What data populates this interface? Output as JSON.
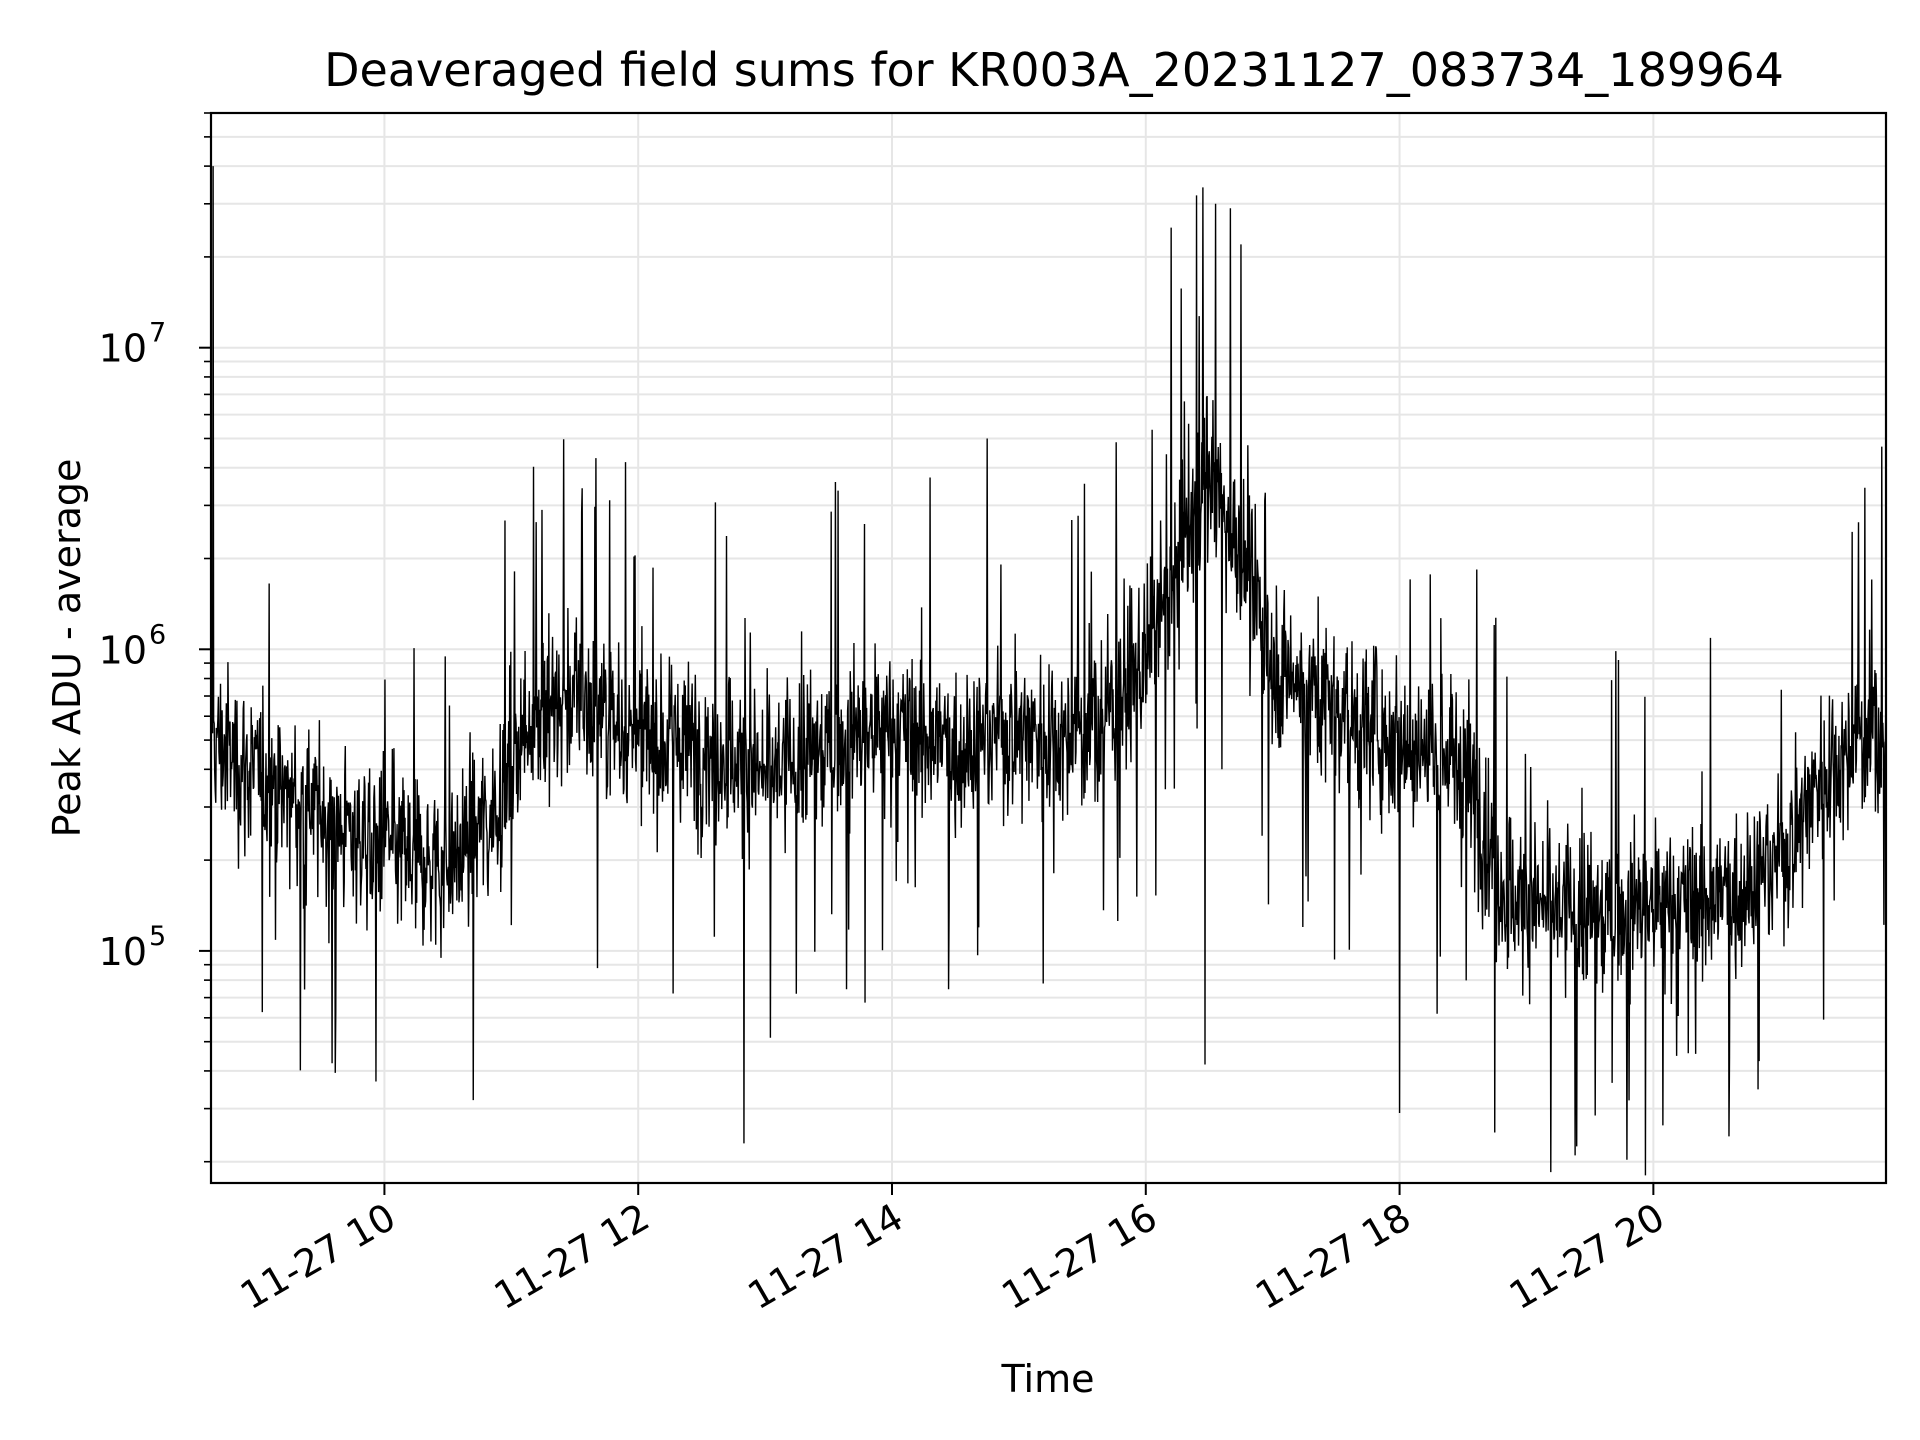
{
  "chart_data": {
    "type": "line",
    "title": "Deaveraged field sums for KR003A_20231127_083734_189964",
    "xlabel": "Time",
    "ylabel": "Peak ADU - average",
    "x_range": [
      "2023-11-27 08:38",
      "2023-11-27 21:50"
    ],
    "y_range": [
      17000,
      60000000
    ],
    "y_scale": "log",
    "grid": true,
    "line_color": "#000000",
    "grid_color": "#e6e6e6",
    "x_ticks": [
      {
        "value": "2023-11-27 10:00",
        "label": "11-27 10"
      },
      {
        "value": "2023-11-27 12:00",
        "label": "11-27 12"
      },
      {
        "value": "2023-11-27 14:00",
        "label": "11-27 14"
      },
      {
        "value": "2023-11-27 16:00",
        "label": "11-27 16"
      },
      {
        "value": "2023-11-27 18:00",
        "label": "11-27 18"
      },
      {
        "value": "2023-11-27 20:00",
        "label": "11-27 20"
      }
    ],
    "y_ticks": [
      {
        "value": 100000,
        "base": "10",
        "exp": "5"
      },
      {
        "value": 1000000,
        "base": "10",
        "exp": "6"
      },
      {
        "value": 10000000,
        "base": "10",
        "exp": "7"
      }
    ],
    "series": [
      {
        "baseline": [
          {
            "x": "2023-11-27 08:38",
            "y": 500000
          },
          {
            "x": "2023-11-27 09:00",
            "y": 380000
          },
          {
            "x": "2023-11-27 09:30",
            "y": 280000
          },
          {
            "x": "2023-11-27 10:00",
            "y": 220000
          },
          {
            "x": "2023-11-27 10:30",
            "y": 190000
          },
          {
            "x": "2023-11-27 10:50",
            "y": 280000
          },
          {
            "x": "2023-11-27 11:10",
            "y": 600000
          },
          {
            "x": "2023-11-27 11:30",
            "y": 700000
          },
          {
            "x": "2023-11-27 12:00",
            "y": 500000
          },
          {
            "x": "2023-11-27 12:30",
            "y": 480000
          },
          {
            "x": "2023-11-27 13:00",
            "y": 380000
          },
          {
            "x": "2023-11-27 13:30",
            "y": 480000
          },
          {
            "x": "2023-11-27 14:00",
            "y": 550000
          },
          {
            "x": "2023-11-27 14:30",
            "y": 480000
          },
          {
            "x": "2023-11-27 15:00",
            "y": 550000
          },
          {
            "x": "2023-11-27 15:30",
            "y": 500000
          },
          {
            "x": "2023-11-27 16:00",
            "y": 900000
          },
          {
            "x": "2023-11-27 16:20",
            "y": 2500000
          },
          {
            "x": "2023-11-27 16:30",
            "y": 4000000
          },
          {
            "x": "2023-11-27 16:45",
            "y": 2000000
          },
          {
            "x": "2023-11-27 17:00",
            "y": 900000
          },
          {
            "x": "2023-11-27 17:30",
            "y": 650000
          },
          {
            "x": "2023-11-27 18:00",
            "y": 500000
          },
          {
            "x": "2023-11-27 18:30",
            "y": 420000
          },
          {
            "x": "2023-11-27 18:50",
            "y": 150000
          },
          {
            "x": "2023-11-27 19:30",
            "y": 130000
          },
          {
            "x": "2023-11-27 20:00",
            "y": 140000
          },
          {
            "x": "2023-11-27 20:30",
            "y": 150000
          },
          {
            "x": "2023-11-27 21:00",
            "y": 200000
          },
          {
            "x": "2023-11-27 21:20",
            "y": 400000
          },
          {
            "x": "2023-11-27 21:50",
            "y": 550000
          }
        ],
        "spikes": [
          {
            "x": "2023-11-27 08:39",
            "y": 40000000
          },
          {
            "x": "2023-11-27 16:12",
            "y": 25000000
          },
          {
            "x": "2023-11-27 16:24",
            "y": 32000000
          },
          {
            "x": "2023-11-27 16:27",
            "y": 34000000
          },
          {
            "x": "2023-11-27 16:33",
            "y": 30000000
          },
          {
            "x": "2023-11-27 16:40",
            "y": 29000000
          },
          {
            "x": "2023-11-27 16:45",
            "y": 22000000
          },
          {
            "x": "2023-11-27 14:45",
            "y": 5000000
          },
          {
            "x": "2023-11-27 21:48",
            "y": 4700000
          },
          {
            "x": "2023-11-27 12:50",
            "y": 23000
          },
          {
            "x": "2023-11-27 19:23",
            "y": 21000
          },
          {
            "x": "2023-11-27 18:45",
            "y": 25000
          },
          {
            "x": "2023-11-27 16:28",
            "y": 42000
          },
          {
            "x": "2023-11-27 18:00",
            "y": 29000
          },
          {
            "x": "2023-11-27 10:42",
            "y": 32000
          }
        ]
      }
    ]
  }
}
